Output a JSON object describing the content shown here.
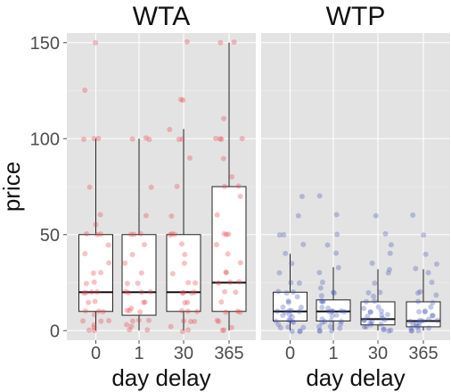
{
  "chart_data": {
    "type": "box",
    "ylabel": "price",
    "ylim": [
      -5,
      155
    ],
    "yticks": [
      0,
      50,
      100,
      150
    ],
    "grid": true,
    "panels": [
      {
        "title": "WTA",
        "xlabel": "day delay",
        "color": "#e8424a",
        "categories": [
          "0",
          "1",
          "30",
          "365"
        ],
        "boxes": [
          {
            "min": 0,
            "q1": 10,
            "median": 20,
            "q3": 50,
            "max": 100
          },
          {
            "min": 0,
            "q1": 8,
            "median": 20,
            "q3": 50,
            "max": 100
          },
          {
            "min": 0,
            "q1": 10,
            "median": 20,
            "q3": 50,
            "max": 105
          },
          {
            "min": 0,
            "q1": 10,
            "median": 25,
            "q3": 75,
            "max": 150
          }
        ],
        "points": [
          [
            150,
            125,
            100,
            100,
            100,
            75,
            60,
            55,
            50,
            50,
            50,
            45,
            40,
            35,
            30,
            30,
            25,
            25,
            20,
            20,
            20,
            20,
            15,
            15,
            10,
            10,
            10,
            8,
            5,
            5,
            5,
            3,
            2,
            0,
            0
          ],
          [
            100,
            100,
            100,
            75,
            60,
            50,
            50,
            50,
            45,
            40,
            35,
            30,
            25,
            25,
            20,
            20,
            20,
            20,
            15,
            15,
            12,
            10,
            10,
            10,
            5,
            5,
            5,
            3,
            2,
            0,
            0
          ],
          [
            150,
            120,
            120,
            105,
            100,
            100,
            90,
            75,
            60,
            50,
            50,
            50,
            45,
            40,
            35,
            30,
            25,
            25,
            20,
            20,
            20,
            20,
            15,
            15,
            10,
            10,
            10,
            5,
            5,
            5,
            2,
            0,
            0
          ],
          [
            150,
            150,
            110,
            100,
            100,
            100,
            100,
            90,
            80,
            75,
            75,
            70,
            60,
            50,
            50,
            50,
            45,
            40,
            35,
            30,
            30,
            25,
            25,
            25,
            20,
            20,
            15,
            10,
            10,
            10,
            5,
            5,
            2,
            0,
            0
          ]
        ]
      },
      {
        "title": "WTP",
        "xlabel": "day delay",
        "color": "#4757b8",
        "categories": [
          "0",
          "1",
          "30",
          "365"
        ],
        "boxes": [
          {
            "min": 0,
            "q1": 5,
            "median": 10,
            "q3": 20,
            "max": 40
          },
          {
            "min": 0,
            "q1": 5,
            "median": 10,
            "q3": 16,
            "max": 33
          },
          {
            "min": 0,
            "q1": 3,
            "median": 6,
            "q3": 15,
            "max": 32
          },
          {
            "min": 0,
            "q1": 2,
            "median": 5,
            "q3": 15,
            "max": 32
          }
        ],
        "points": [
          [
            70,
            60,
            50,
            50,
            45,
            40,
            35,
            30,
            25,
            25,
            20,
            20,
            20,
            18,
            15,
            15,
            12,
            12,
            10,
            10,
            10,
            10,
            10,
            8,
            8,
            7,
            5,
            5,
            5,
            5,
            4,
            3,
            2,
            2,
            1,
            0,
            0,
            0
          ],
          [
            70,
            60,
            50,
            45,
            40,
            33,
            30,
            25,
            22,
            20,
            20,
            18,
            15,
            15,
            15,
            12,
            12,
            10,
            10,
            10,
            10,
            10,
            8,
            8,
            6,
            5,
            5,
            5,
            4,
            3,
            2,
            2,
            1,
            0,
            0,
            0
          ],
          [
            60,
            50,
            45,
            40,
            35,
            32,
            30,
            25,
            20,
            20,
            18,
            15,
            15,
            12,
            12,
            10,
            10,
            10,
            8,
            8,
            7,
            6,
            6,
            5,
            5,
            5,
            4,
            3,
            3,
            2,
            2,
            1,
            0,
            0,
            0
          ],
          [
            60,
            50,
            40,
            35,
            32,
            30,
            25,
            20,
            20,
            18,
            15,
            15,
            12,
            10,
            10,
            10,
            8,
            8,
            6,
            5,
            5,
            5,
            5,
            4,
            3,
            3,
            2,
            2,
            1,
            1,
            0,
            0,
            0
          ]
        ]
      }
    ]
  }
}
